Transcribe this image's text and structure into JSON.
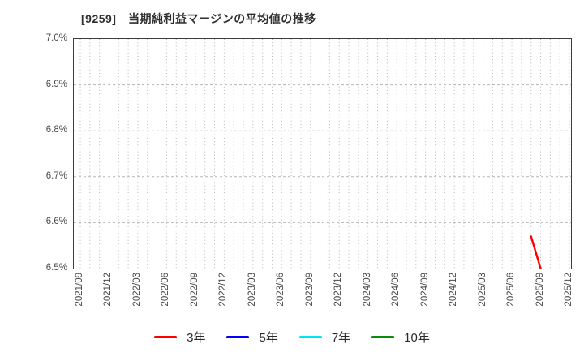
{
  "title": "[9259]　当期純利益マージンの平均値の推移",
  "chart_data": {
    "type": "line",
    "title": "[9259]　当期純利益マージンの平均値の推移",
    "ylabel": "",
    "xlabel": "",
    "ylim": [
      6.5,
      7.0
    ],
    "ytick_step": 0.1,
    "yticks": [
      {
        "label": "7.0%",
        "value": 7.0
      },
      {
        "label": "6.9%",
        "value": 6.9
      },
      {
        "label": "6.8%",
        "value": 6.8
      },
      {
        "label": "6.7%",
        "value": 6.7
      },
      {
        "label": "6.6%",
        "value": 6.6
      },
      {
        "label": "6.5%",
        "value": 6.5
      }
    ],
    "xticks": [
      "2021/09",
      "2021/12",
      "2022/03",
      "2022/06",
      "2022/09",
      "2022/12",
      "2023/03",
      "2023/06",
      "2023/09",
      "2023/12",
      "2024/03",
      "2024/06",
      "2024/09",
      "2024/12",
      "2025/03",
      "2025/06",
      "2025/09",
      "2025/12"
    ],
    "x_axis": {
      "start": "2021/09",
      "end": "2025/12",
      "tick_interval_months": 3,
      "minor_gridline_interval_months": 1
    },
    "grid": {
      "vertical": "dotted-monthly",
      "horizontal": "dashed-per-ytick",
      "color": "#b5b5b5"
    },
    "legend_position": "bottom-center",
    "series": [
      {
        "name": "3年",
        "color": "#ff0000",
        "points": [
          {
            "date": "2025/08",
            "value": 6.57
          },
          {
            "date": "2025/09",
            "value": 6.5
          }
        ]
      },
      {
        "name": "5年",
        "color": "#0000ff",
        "points": []
      },
      {
        "name": "7年",
        "color": "#00e5ee",
        "points": []
      },
      {
        "name": "10年",
        "color": "#0c8a0c",
        "points": []
      }
    ]
  }
}
